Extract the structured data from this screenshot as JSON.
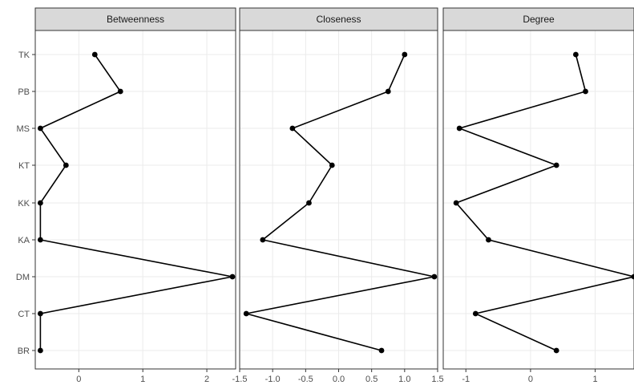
{
  "chart_data": {
    "type": "line",
    "categories": [
      "TK",
      "PB",
      "MS",
      "KT",
      "KK",
      "KA",
      "DM",
      "CT",
      "BR"
    ],
    "panels": [
      {
        "title": "Betweenness",
        "xlim": [
          -0.68,
          2.45
        ],
        "xticks": [
          0,
          1,
          2
        ],
        "xtick_labels": [
          "0",
          "1",
          "2"
        ],
        "values": [
          0.25,
          0.65,
          -0.6,
          -0.2,
          -0.6,
          -0.6,
          2.4,
          -0.6,
          -0.6
        ]
      },
      {
        "title": "Closeness",
        "xlim": [
          -1.5,
          1.5
        ],
        "xticks": [
          -1.5,
          -1.0,
          -0.5,
          0.0,
          0.5,
          1.0,
          1.5
        ],
        "xtick_labels": [
          "-1.5",
          "-1.0",
          "-0.5",
          "0.0",
          "0.5",
          "1.0",
          "1.5"
        ],
        "values": [
          1.0,
          0.75,
          -0.7,
          -0.1,
          -0.45,
          -1.15,
          1.45,
          -1.4,
          0.65
        ]
      },
      {
        "title": "Degree",
        "xlim": [
          -1.35,
          1.6
        ],
        "xticks": [
          -1,
          0,
          1
        ],
        "xtick_labels": [
          "-1",
          "0",
          "1"
        ],
        "values": [
          0.7,
          0.85,
          -1.1,
          0.4,
          -1.15,
          -0.65,
          1.6,
          -0.85,
          0.4
        ]
      }
    ],
    "grid": true,
    "legend": "none"
  }
}
